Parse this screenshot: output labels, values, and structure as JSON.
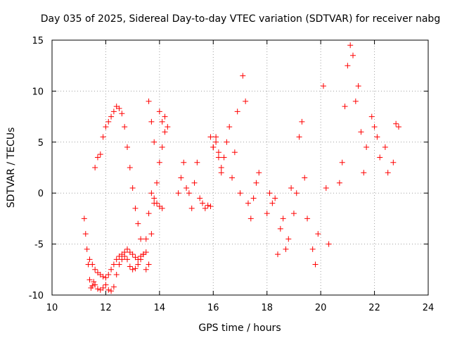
{
  "chart_data": {
    "type": "scatter",
    "title": "Day 035 of 2025, Sidereal Day-to-day VTEC variation (SDTVAR) for receiver nabg",
    "xlabel": "GPS time / hours",
    "ylabel": "SDTVAR / TECUs",
    "xlim": [
      10,
      24
    ],
    "ylim": [
      -10,
      15
    ],
    "xticks": [
      "10",
      "12",
      "14",
      "16",
      "18",
      "20",
      "22",
      "24"
    ],
    "yticks": [
      "-10",
      "-5",
      "0",
      "5",
      "10",
      "15"
    ],
    "grid": true,
    "marker": "+",
    "colors": {
      "points": "#ff0000",
      "grid": "#a0a0a0",
      "axis": "#000000"
    },
    "series": [
      {
        "name": "SDTVAR",
        "x": [
          11.2,
          11.25,
          11.3,
          11.35,
          11.4,
          11.45,
          11.5,
          11.55,
          11.6,
          11.7,
          11.8,
          11.9,
          12.0,
          12.1,
          12.2,
          12.3,
          12.4,
          12.5,
          12.6,
          12.7,
          12.8,
          12.9,
          13.0,
          13.1,
          13.2,
          13.3,
          13.4,
          13.5,
          13.6,
          13.7,
          13.8,
          13.9,
          14.0,
          14.1,
          11.4,
          11.5,
          11.6,
          11.7,
          11.8,
          11.9,
          12.0,
          12.1,
          12.2,
          12.3,
          12.4,
          12.5,
          12.6,
          12.7,
          12.8,
          12.9,
          13.0,
          13.1,
          13.2,
          13.3,
          13.4,
          13.5,
          11.6,
          11.7,
          11.8,
          11.9,
          12.0,
          12.1,
          12.2,
          12.3,
          12.4,
          12.5,
          12.6,
          12.7,
          12.8,
          12.9,
          13.0,
          13.1,
          13.2,
          13.3,
          13.4,
          13.5,
          13.6,
          13.7,
          13.8,
          13.9,
          14.0,
          14.1,
          14.2,
          13.6,
          13.7,
          13.8,
          14.0,
          14.1,
          14.2,
          14.3,
          14.7,
          14.8,
          14.9,
          15.0,
          15.1,
          15.2,
          15.3,
          15.4,
          15.5,
          15.6,
          15.7,
          15.8,
          15.9,
          16.0,
          16.1,
          16.2,
          16.3,
          16.4,
          16.5,
          16.6,
          16.7,
          16.8,
          16.9,
          17.0,
          17.1,
          17.2,
          17.3,
          17.4,
          17.5,
          17.6,
          17.7,
          15.9,
          16.0,
          16.1,
          16.2,
          16.3,
          18.0,
          18.1,
          18.2,
          18.3,
          18.4,
          18.5,
          18.6,
          18.7,
          18.8,
          18.9,
          19.0,
          19.1,
          19.2,
          19.3,
          19.4,
          19.5,
          19.7,
          19.8,
          19.9,
          20.1,
          20.2,
          20.3,
          20.7,
          20.8,
          20.9,
          21.0,
          21.1,
          21.2,
          21.3,
          21.4,
          21.5,
          21.6,
          21.7,
          21.9,
          22.0,
          22.1,
          22.2,
          22.4,
          22.5,
          22.7,
          22.8,
          22.9
        ],
        "y": [
          -2.5,
          -4.0,
          -5.5,
          -7.0,
          -8.5,
          -9.3,
          -9.1,
          -8.7,
          -9.0,
          -9.4,
          -9.5,
          -9.3,
          -9.0,
          -9.5,
          -9.6,
          -9.2,
          -8.0,
          -7.0,
          -6.5,
          -6.2,
          -6.5,
          -7.2,
          -7.5,
          -7.4,
          -7.0,
          -6.5,
          -6.0,
          -4.5,
          -2.0,
          0.0,
          -0.5,
          -1.0,
          -1.3,
          -1.5,
          -6.5,
          -7.0,
          -7.5,
          -7.8,
          -8.0,
          -8.2,
          -8.3,
          -8.0,
          -7.5,
          -7.0,
          -6.5,
          -6.2,
          -6.0,
          -5.8,
          -5.5,
          -5.8,
          -6.0,
          -6.3,
          -6.5,
          -6.2,
          -6.0,
          -5.8,
          2.5,
          3.5,
          3.8,
          5.5,
          6.5,
          7.0,
          7.5,
          8.0,
          8.5,
          8.3,
          7.8,
          6.5,
          4.5,
          2.5,
          0.5,
          -1.5,
          -3.0,
          -4.5,
          -6.0,
          -7.5,
          -7.0,
          -4.0,
          -1.0,
          1.0,
          3.0,
          4.5,
          6.0,
          9.0,
          7.0,
          5.0,
          8.0,
          7.0,
          7.5,
          6.5,
          0.0,
          1.5,
          3.0,
          0.5,
          0.0,
          -1.5,
          1.0,
          3.0,
          -0.5,
          -1.0,
          -1.5,
          -1.2,
          -1.3,
          4.5,
          5.0,
          4.0,
          2.0,
          3.5,
          5.0,
          6.5,
          1.5,
          4.0,
          8.0,
          0.0,
          11.5,
          9.0,
          -1.0,
          -2.5,
          -0.5,
          1.0,
          2.0,
          5.5,
          4.5,
          5.5,
          3.5,
          2.5,
          -2.0,
          0.0,
          -1.0,
          -0.5,
          -6.0,
          -3.5,
          -2.5,
          -5.5,
          -4.5,
          0.5,
          -2.0,
          0.0,
          5.5,
          7.0,
          1.5,
          -2.5,
          -5.5,
          -7.0,
          -4.0,
          10.5,
          0.5,
          -5.0,
          1.0,
          3.0,
          8.5,
          12.5,
          14.5,
          13.5,
          9.0,
          10.5,
          6.0,
          2.0,
          4.5,
          7.5,
          6.5,
          5.5,
          3.5,
          4.5,
          2.0,
          3.0,
          6.8,
          6.5
        ]
      }
    ]
  }
}
